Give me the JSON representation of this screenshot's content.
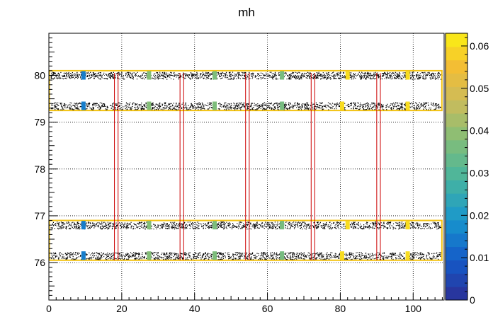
{
  "chart_data": {
    "type": "heatmap",
    "title": "mh",
    "xlabel": "",
    "ylabel": "",
    "xlim": [
      0,
      108.5
    ],
    "ylim": [
      75.2,
      80.9
    ],
    "x_ticks": [
      0,
      20,
      40,
      60,
      80,
      100
    ],
    "y_ticks": [
      76,
      77,
      78,
      79,
      80
    ],
    "grid": true,
    "colorbar": {
      "range": [
        0,
        0.063
      ],
      "ticks": [
        0,
        0.01,
        0.02,
        0.03,
        0.04,
        0.05,
        0.06
      ],
      "tick_labels": [
        "0",
        "0.01",
        "0.02",
        "0.03",
        "0.04",
        "0.05",
        "0.06"
      ]
    },
    "bands_y": [
      80.0,
      79.35,
      76.8,
      76.15
    ],
    "band_x_range": [
      0.5,
      107.5
    ],
    "frame_y_ranges": [
      [
        79.25,
        80.1
      ],
      [
        76.05,
        76.9
      ]
    ],
    "divider_x": [
      18.5,
      36.5,
      54.5,
      72.5,
      90.5
    ],
    "colored_cells": [
      {
        "x": 9.5,
        "y": 80.0,
        "value": 0.015
      },
      {
        "x": 27.5,
        "y": 80.0,
        "value": 0.038
      },
      {
        "x": 45.5,
        "y": 80.0,
        "value": 0.037
      },
      {
        "x": 64.0,
        "y": 80.0,
        "value": 0.036
      },
      {
        "x": 82.0,
        "y": 80.0,
        "value": 0.06
      },
      {
        "x": 98.5,
        "y": 80.0,
        "value": 0.06
      },
      {
        "x": 9.5,
        "y": 79.35,
        "value": 0.015
      },
      {
        "x": 27.5,
        "y": 79.35,
        "value": 0.038
      },
      {
        "x": 45.5,
        "y": 79.35,
        "value": 0.037
      },
      {
        "x": 64.0,
        "y": 79.35,
        "value": 0.036
      },
      {
        "x": 80.5,
        "y": 79.35,
        "value": 0.06
      },
      {
        "x": 98.5,
        "y": 79.35,
        "value": 0.06
      },
      {
        "x": 9.5,
        "y": 76.8,
        "value": 0.015
      },
      {
        "x": 27.5,
        "y": 76.8,
        "value": 0.038
      },
      {
        "x": 45.5,
        "y": 76.8,
        "value": 0.037
      },
      {
        "x": 64.0,
        "y": 76.8,
        "value": 0.036
      },
      {
        "x": 82.0,
        "y": 76.8,
        "value": 0.06
      },
      {
        "x": 98.5,
        "y": 76.8,
        "value": 0.06
      },
      {
        "x": 9.5,
        "y": 76.15,
        "value": 0.015
      },
      {
        "x": 27.5,
        "y": 76.15,
        "value": 0.038
      },
      {
        "x": 45.5,
        "y": 76.15,
        "value": 0.037
      },
      {
        "x": 64.0,
        "y": 76.15,
        "value": 0.036
      },
      {
        "x": 80.5,
        "y": 76.15,
        "value": 0.06
      },
      {
        "x": 98.5,
        "y": 76.15,
        "value": 0.06
      }
    ]
  }
}
